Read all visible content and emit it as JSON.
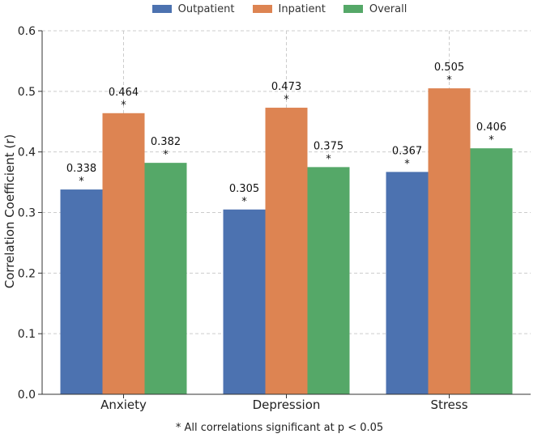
{
  "chart_data": {
    "type": "bar",
    "categories": [
      "Anxiety",
      "Depression",
      "Stress"
    ],
    "series": [
      {
        "name": "Outpatient",
        "values": [
          0.338,
          0.305,
          0.367
        ],
        "labels": [
          "0.338",
          "0.305",
          "0.367"
        ],
        "color": "#4c72b0"
      },
      {
        "name": "Inpatient",
        "values": [
          0.464,
          0.473,
          0.505
        ],
        "labels": [
          "0.464",
          "0.473",
          "0.505"
        ],
        "color": "#dd8452"
      },
      {
        "name": "Overall",
        "values": [
          0.382,
          0.375,
          0.406
        ],
        "labels": [
          "0.382",
          "0.375",
          "0.406"
        ],
        "color": "#55a868"
      }
    ],
    "significance_marker": "*",
    "title": "",
    "xlabel": "",
    "ylabel": "Correlation Coefficient (r)",
    "ylim": [
      0,
      0.6
    ],
    "yticks": [
      "0.0",
      "0.1",
      "0.2",
      "0.3",
      "0.4",
      "0.5",
      "0.6"
    ],
    "grid": true,
    "legend_position": "top-center",
    "footnote": "* All correlations significant at p < 0.05"
  }
}
